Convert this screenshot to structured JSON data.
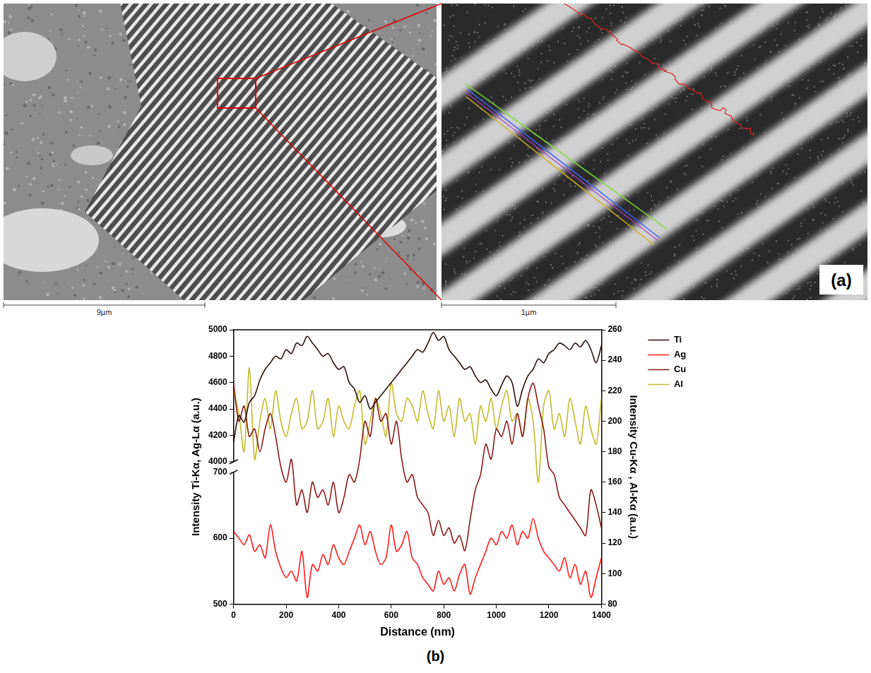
{
  "figure": {
    "panel_a": {
      "label": "(a)",
      "scale_bars": [
        "9µm",
        "1µm"
      ]
    },
    "panel_b": {
      "label": "(b)"
    }
  },
  "chart_data": {
    "type": "line",
    "x_label": "Distance (nm)",
    "y_label": "Intensity Ti-Kα, Ag-Lα (a.u.)",
    "y2_label": "Intensity Cu-Kα , Al-Kα (a.u.)",
    "x": [
      0,
      20,
      40,
      60,
      80,
      100,
      120,
      140,
      160,
      180,
      200,
      220,
      240,
      260,
      280,
      300,
      320,
      340,
      360,
      380,
      400,
      420,
      440,
      460,
      480,
      500,
      520,
      540,
      560,
      580,
      600,
      620,
      640,
      660,
      680,
      700,
      720,
      740,
      760,
      780,
      800,
      820,
      840,
      860,
      880,
      900,
      920,
      940,
      960,
      980,
      1000,
      1020,
      1040,
      1060,
      1080,
      1100,
      1120,
      1140,
      1160,
      1180,
      1200,
      1220,
      1240,
      1260,
      1280,
      1300,
      1320,
      1340,
      1360,
      1380,
      1400
    ],
    "xlim": [
      0,
      1400
    ],
    "xticks": [
      0,
      200,
      400,
      600,
      800,
      1000,
      1200,
      1400
    ],
    "ylim": [
      500,
      5000
    ],
    "y_break": [
      700,
      4000
    ],
    "yticks": [
      500,
      600,
      700,
      4000,
      4200,
      4400,
      4600,
      4800,
      5000
    ],
    "y2lim": [
      80,
      260
    ],
    "y2ticks": [
      80,
      100,
      120,
      140,
      160,
      180,
      200,
      220,
      240,
      260
    ],
    "grid": false,
    "legend": "right",
    "series": [
      {
        "name": "Ti",
        "color": "#2b1008",
        "axis": "y",
        "values": [
          4150,
          4350,
          4300,
          4450,
          4500,
          4620,
          4700,
          4750,
          4800,
          4780,
          4850,
          4820,
          4900,
          4880,
          4950,
          4900,
          4850,
          4800,
          4820,
          4750,
          4700,
          4720,
          4600,
          4550,
          4450,
          4500,
          4400,
          4450,
          4500,
          4550,
          4600,
          4650,
          4700,
          4750,
          4800,
          4850,
          4830,
          4900,
          4980,
          4920,
          4950,
          4850,
          4800,
          4750,
          4700,
          4720,
          4650,
          4600,
          4620,
          4550,
          4500,
          4580,
          4650,
          4600,
          4420,
          4550,
          4650,
          4700,
          4780,
          4750,
          4820,
          4850,
          4900,
          4880,
          4850,
          4900,
          4870,
          4920,
          4850,
          4750,
          4880
        ]
      },
      {
        "name": "Ag",
        "color": "#ff1a1a",
        "axis": "y",
        "values": [
          610,
          600,
          590,
          605,
          580,
          590,
          570,
          620,
          580,
          555,
          540,
          550,
          535,
          580,
          510,
          560,
          550,
          575,
          560,
          590,
          570,
          560,
          580,
          600,
          620,
          590,
          610,
          580,
          560,
          570,
          620,
          580,
          590,
          610,
          570,
          560,
          540,
          530,
          520,
          550,
          530,
          540,
          520,
          545,
          560,
          515,
          540,
          560,
          580,
          600,
          590,
          610,
          600,
          620,
          590,
          610,
          600,
          630,
          600,
          580,
          570,
          560,
          550,
          570,
          540,
          560,
          530,
          550,
          510,
          540,
          570
        ]
      },
      {
        "name": "Cu",
        "color": "#8b1a1a",
        "axis": "y2",
        "values": [
          225,
          200,
          210,
          190,
          195,
          180,
          195,
          205,
          190,
          170,
          160,
          175,
          145,
          155,
          140,
          160,
          150,
          155,
          145,
          160,
          140,
          150,
          165,
          160,
          175,
          200,
          190,
          215,
          200,
          205,
          185,
          200,
          175,
          160,
          165,
          150,
          145,
          140,
          125,
          135,
          125,
          130,
          120,
          125,
          115,
          135,
          155,
          165,
          185,
          175,
          195,
          190,
          200,
          185,
          205,
          190,
          215,
          225,
          210,
          195,
          170,
          165,
          150,
          145,
          140,
          135,
          130,
          125,
          155,
          145,
          130
        ]
      },
      {
        "name": "Al",
        "color": "#c2bb2a",
        "axis": "y2",
        "values": [
          220,
          205,
          180,
          235,
          175,
          200,
          215,
          195,
          220,
          200,
          190,
          205,
          215,
          195,
          200,
          220,
          195,
          200,
          215,
          190,
          210,
          200,
          195,
          210,
          220,
          185,
          200,
          215,
          205,
          190,
          225,
          205,
          200,
          215,
          210,
          200,
          220,
          205,
          195,
          220,
          200,
          210,
          190,
          215,
          200,
          205,
          185,
          210,
          200,
          215,
          195,
          210,
          220,
          200,
          205,
          190,
          215,
          200,
          160,
          210,
          220,
          195,
          205,
          190,
          215,
          200,
          185,
          210,
          195,
          185,
          215
        ]
      }
    ]
  }
}
